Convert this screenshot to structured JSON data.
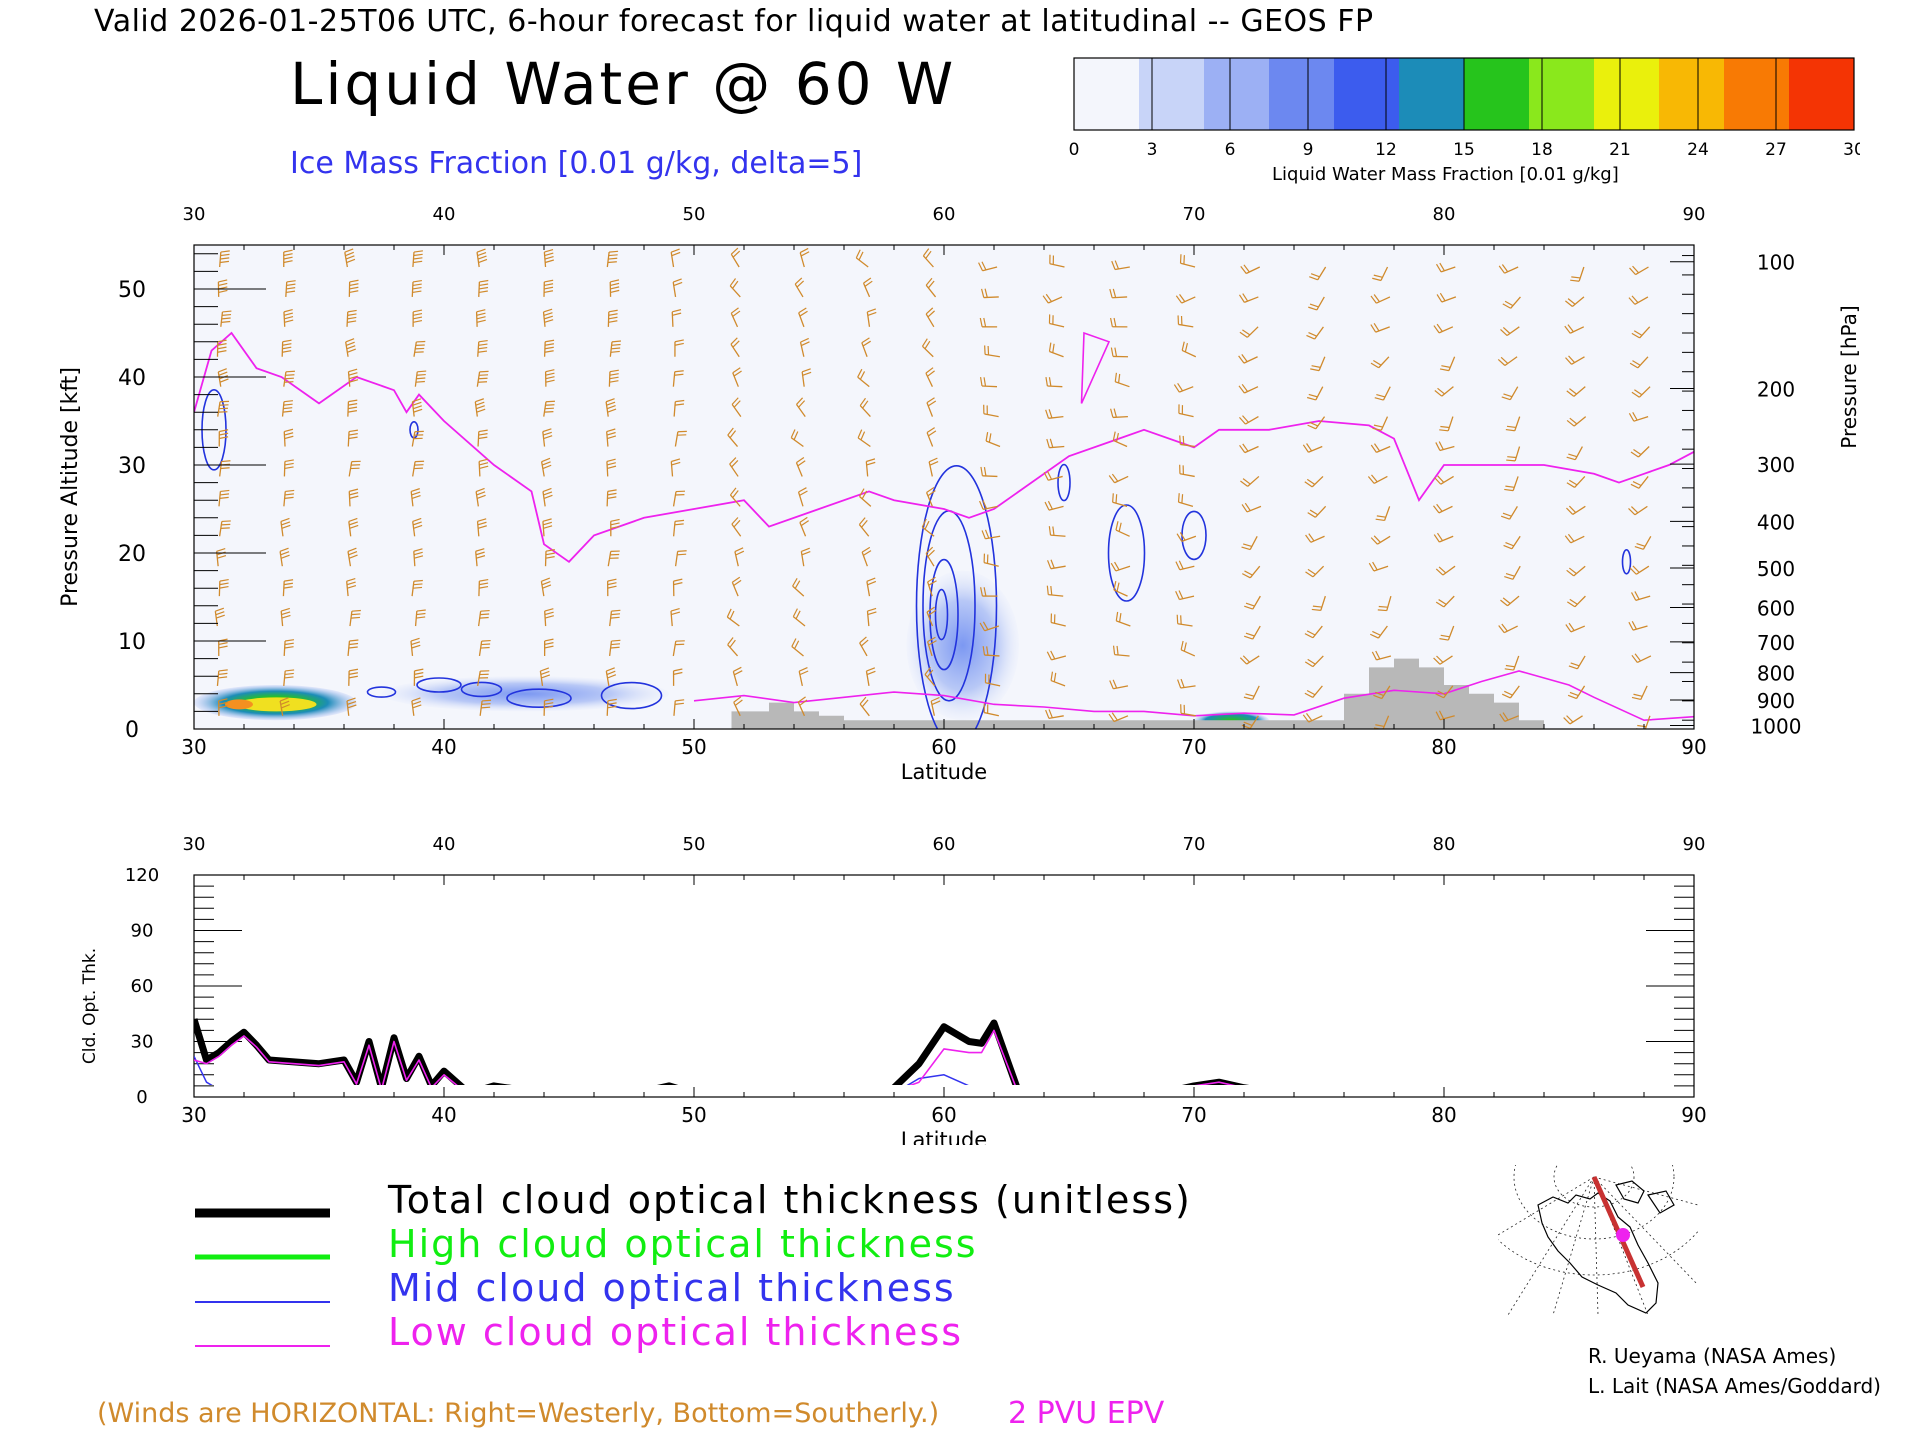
{
  "header": {
    "valid_line": "Valid 2026-01-25T06 UTC, 6-hour forecast for liquid water at latitudinal -- GEOS FP",
    "title": "Liquid Water @ 60 W",
    "ice_label": "Ice Mass Fraction [0.01 g/kg, delta=5]"
  },
  "colorbar": {
    "ticks": [
      "0",
      "3",
      "6",
      "9",
      "12",
      "15",
      "18",
      "21",
      "24",
      "27",
      "30"
    ],
    "caption": "Liquid Water Mass Fraction [0.01 g/kg]",
    "colors": [
      "#f4f6fc",
      "#c8d4f8",
      "#9cb0f4",
      "#6c88f0",
      "#3c5cee",
      "#1c8cb8",
      "#26c41c",
      "#8ae81c",
      "#eaf00c",
      "#f8b804",
      "#f87a04",
      "#f43404"
    ]
  },
  "footer": {
    "winds_note": "(Winds are HORIZONTAL: Right=Westerly, Bottom=Southerly.)",
    "epv_note": "2 PVU EPV",
    "credit1": "R. Ueyama (NASA Ames)",
    "credit2": "L. Lait (NASA Ames/Goddard)"
  },
  "legend": [
    {
      "label": "Total cloud optical thickness (unitless)",
      "color": "#000000"
    },
    {
      "label": "High cloud optical thickness",
      "color": "#11ee11"
    },
    {
      "label": "Mid cloud optical thickness",
      "color": "#3333ee"
    },
    {
      "label": "Low cloud optical thickness",
      "color": "#ee22ee"
    }
  ],
  "colors": {
    "wind_barbs": "#d08a2c",
    "epv_line": "#ee22ee",
    "ice_contour": "#2233dd",
    "terrain": "#b8b8b8",
    "background_field": "#f4f6fc"
  },
  "chart_data": [
    {
      "type": "heatmap",
      "title": "Liquid Water @ 60 W",
      "xlabel": "Latitude",
      "ylabel": "Pressure Altitude [kft]",
      "ylabel_right": "Pressure [hPa]",
      "x_ticks": [
        "30",
        "40",
        "50",
        "60",
        "70",
        "80",
        "90"
      ],
      "xlim": [
        30,
        90
      ],
      "y_ticks": [
        "0",
        "10",
        "20",
        "30",
        "40",
        "50"
      ],
      "ylim": [
        0,
        55
      ],
      "pressure_ticks": [
        {
          "label": "100",
          "kft": 53.1
        },
        {
          "label": "200",
          "kft": 38.7
        },
        {
          "label": "300",
          "kft": 30.1
        },
        {
          "label": "400",
          "kft": 23.6
        },
        {
          "label": "500",
          "kft": 18.3
        },
        {
          "label": "600",
          "kft": 13.8
        },
        {
          "label": "700",
          "kft": 9.9
        },
        {
          "label": "800",
          "kft": 6.4
        },
        {
          "label": "900",
          "kft": 3.3
        },
        {
          "label": "1000",
          "kft": 0.4
        }
      ],
      "epv_2pvu_kft": {
        "lat": [
          30,
          30.7,
          31.5,
          32.5,
          33.5,
          35,
          36.5,
          38,
          38.5,
          39,
          40,
          42,
          43.5,
          44,
          45,
          46,
          48,
          50,
          52,
          53,
          55,
          57,
          58,
          59,
          60,
          61,
          62,
          63,
          65,
          67,
          68,
          70,
          71,
          73,
          75,
          77,
          78,
          79,
          80,
          82,
          84,
          86,
          87,
          88,
          89,
          90
        ],
        "kft": [
          36,
          43,
          45,
          41,
          40,
          37,
          40,
          38.5,
          36,
          38,
          35,
          30,
          27,
          21,
          19,
          22,
          24,
          25,
          26,
          23,
          25,
          27,
          26,
          25.5,
          25,
          24,
          25,
          27,
          31,
          33,
          34,
          32,
          34,
          34,
          35,
          34.5,
          33,
          26,
          30,
          30,
          30,
          29,
          28,
          29,
          30,
          31.5
        ]
      },
      "liquid_water_features": [
        {
          "lat": [
            30,
            36.5
          ],
          "kft": [
            1,
            5
          ],
          "max": 26
        },
        {
          "lat": [
            37.5,
            49
          ],
          "kft": [
            2,
            6
          ],
          "max": 6
        },
        {
          "lat": [
            58.5,
            63
          ],
          "kft": [
            1,
            18
          ],
          "max": 9
        },
        {
          "lat": [
            70,
            73
          ],
          "kft": [
            0,
            2
          ],
          "max": 15
        }
      ],
      "terrain_kft": {
        "lat": [
          50,
          51.5,
          52,
          53,
          54,
          55,
          56,
          58,
          60,
          62,
          64,
          66,
          68,
          70,
          72,
          74,
          75,
          76,
          77,
          78,
          79,
          80,
          81,
          82,
          83,
          84,
          86,
          88,
          90
        ],
        "kft": [
          0,
          2,
          2,
          3,
          2,
          1.5,
          1,
          1,
          1,
          1,
          1,
          1,
          1,
          1,
          1,
          1,
          1,
          4,
          7,
          8,
          7,
          5,
          4,
          3,
          1,
          0,
          0,
          0,
          0
        ]
      }
    },
    {
      "type": "line",
      "xlabel": "Latitude",
      "ylabel": "Cld. Opt. Thk.",
      "x_ticks": [
        "30",
        "40",
        "50",
        "60",
        "70",
        "80",
        "90"
      ],
      "xlim": [
        30,
        90
      ],
      "y_ticks": [
        "0",
        "30",
        "60",
        "90",
        "120"
      ],
      "ylim": [
        0,
        120
      ],
      "x": [
        30,
        30.5,
        31,
        31.5,
        32,
        32.5,
        33,
        34,
        35,
        36,
        36.5,
        37,
        37.5,
        38,
        38.5,
        39,
        39.5,
        40,
        41,
        42,
        43,
        44,
        45,
        46,
        47,
        48,
        49,
        50,
        52,
        54,
        56,
        57,
        58,
        59,
        60,
        61,
        61.5,
        62,
        63,
        64,
        65,
        66,
        67,
        68,
        69,
        70,
        71,
        72,
        73,
        74,
        75,
        76,
        78,
        80,
        82,
        84,
        86,
        88,
        90
      ],
      "series": [
        {
          "name": "Total cloud optical thickness (unitless)",
          "values": [
            42,
            20,
            24,
            30,
            35,
            28,
            20,
            19,
            18,
            20,
            8,
            30,
            5,
            32,
            10,
            22,
            6,
            14,
            2,
            6,
            4,
            4,
            2,
            2,
            4,
            3,
            6,
            2,
            1,
            1,
            1,
            2,
            5,
            18,
            38,
            30,
            29,
            40,
            2,
            1,
            1,
            0,
            1,
            1,
            3,
            6,
            8,
            5,
            3,
            1,
            0,
            0,
            1,
            1,
            1,
            1,
            1,
            2,
            1
          ]
        },
        {
          "name": "High cloud optical thickness",
          "values": [
            1,
            1,
            1,
            1,
            1,
            1,
            1,
            1,
            1,
            1,
            1,
            1,
            1,
            1,
            1,
            1,
            1,
            1,
            1,
            1,
            1,
            1,
            1,
            1,
            1,
            1,
            1,
            1,
            1,
            1,
            1,
            1,
            1,
            1,
            1,
            1,
            1,
            1,
            1,
            1,
            1,
            1,
            1,
            1,
            1,
            1,
            1,
            1,
            1,
            1,
            1,
            1,
            1,
            1,
            1,
            1,
            1,
            1,
            1
          ]
        },
        {
          "name": "Mid cloud optical thickness",
          "values": [
            22,
            8,
            4,
            2,
            2,
            1,
            1,
            1,
            1,
            1,
            1,
            1,
            1,
            1,
            1,
            1,
            1,
            1,
            1,
            1,
            1,
            1,
            1,
            1,
            1,
            1,
            1,
            1,
            0,
            0,
            0,
            0,
            2,
            10,
            12,
            6,
            5,
            4,
            1,
            0,
            0,
            0,
            0,
            0,
            0,
            0,
            0,
            0,
            0,
            0,
            0,
            0,
            0,
            0,
            0,
            0,
            0,
            0,
            0
          ]
        },
        {
          "name": "Low cloud optical thickness",
          "values": [
            20,
            18,
            22,
            28,
            33,
            27,
            19,
            18,
            17,
            19,
            7,
            28,
            4,
            30,
            9,
            20,
            5,
            12,
            1,
            5,
            3,
            3,
            1,
            1,
            3,
            2,
            5,
            1,
            1,
            1,
            1,
            2,
            3,
            8,
            26,
            24,
            24,
            36,
            1,
            1,
            1,
            0,
            1,
            1,
            3,
            6,
            8,
            5,
            3,
            1,
            0,
            0,
            1,
            1,
            1,
            1,
            1,
            2,
            1
          ]
        }
      ]
    }
  ]
}
